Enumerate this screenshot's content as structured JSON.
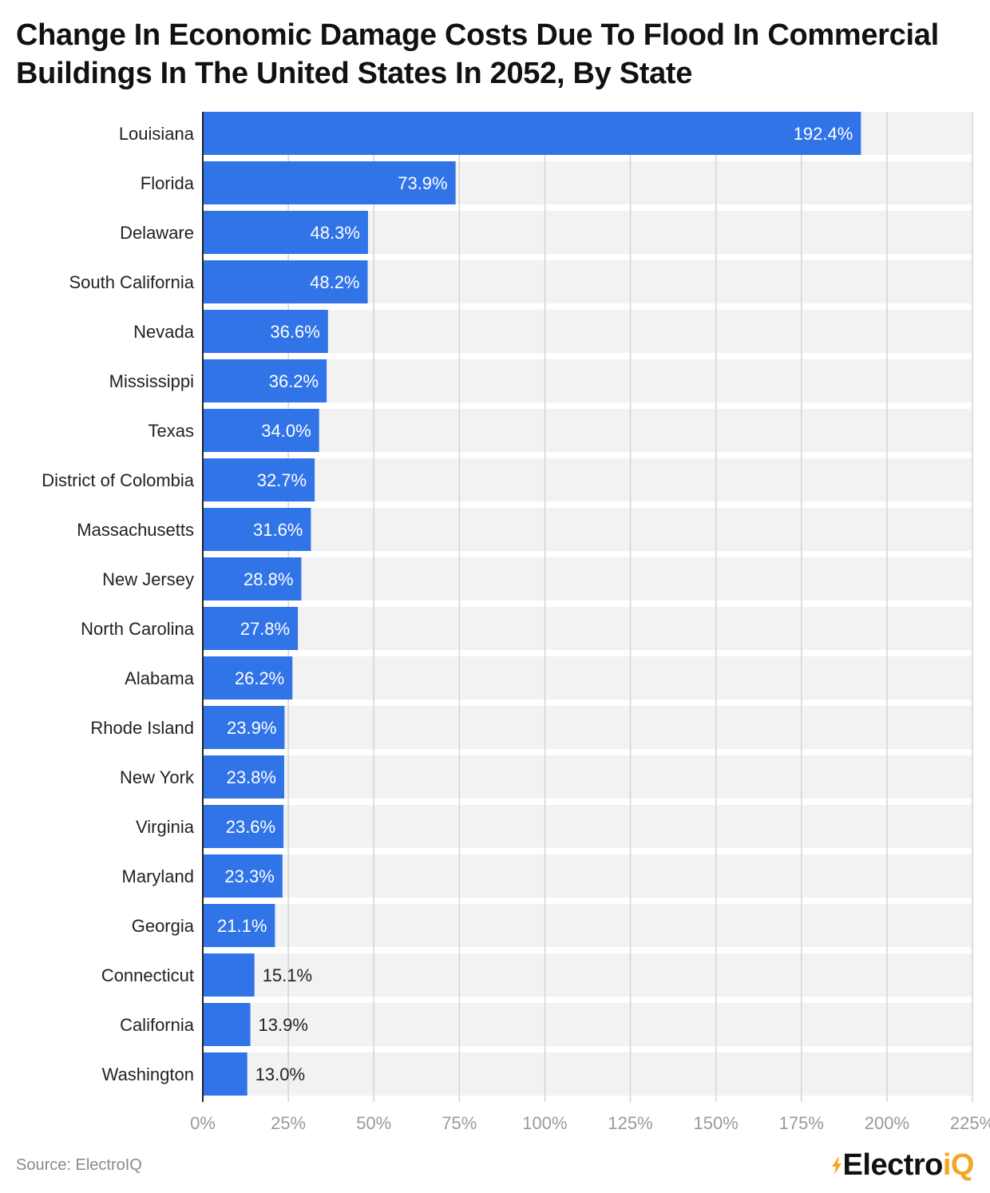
{
  "chart_data": {
    "type": "bar",
    "orientation": "horizontal",
    "title": "Change In Economic Damage Costs Due To Flood In Commercial Buildings In The United States In 2052, By State",
    "categories": [
      "Louisiana",
      "Florida",
      "Delaware",
      "South California",
      "Nevada",
      "Mississippi",
      "Texas",
      "District of Colombia",
      "Massachusetts",
      "New Jersey",
      "North Carolina",
      "Alabama",
      "Rhode Island",
      "New York",
      "Virginia",
      "Maryland",
      "Georgia",
      "Connecticut",
      "California",
      "Washington"
    ],
    "values": [
      192.4,
      73.9,
      48.3,
      48.2,
      36.6,
      36.2,
      34.0,
      32.7,
      31.6,
      28.8,
      27.8,
      26.2,
      23.9,
      23.8,
      23.6,
      23.3,
      21.1,
      15.1,
      13.9,
      13.0
    ],
    "value_labels": [
      "192.4%",
      "73.9%",
      "48.3%",
      "48.2%",
      "36.6%",
      "36.2%",
      "34.0%",
      "32.7%",
      "31.6%",
      "28.8%",
      "27.8%",
      "26.2%",
      "23.9%",
      "23.8%",
      "23.6%",
      "23.3%",
      "21.1%",
      "15.1%",
      "13.9%",
      "13.0%"
    ],
    "xlim": [
      0,
      225
    ],
    "x_ticks": [
      0,
      25,
      50,
      75,
      100,
      125,
      150,
      175,
      200,
      225
    ],
    "x_tick_labels": [
      "0%",
      "25%",
      "50%",
      "75%",
      "100%",
      "125%",
      "150%",
      "175%",
      "200%",
      "225%"
    ],
    "xlabel": "",
    "ylabel": "",
    "grid": true,
    "legend": "none",
    "bar_color": "#3174e8",
    "row_band_color": "#f2f2f2"
  },
  "footer": {
    "source": "Source: ElectroIQ",
    "logo_main": "Electro",
    "logo_accent": "iQ"
  },
  "colors": {
    "logo_accent": "#f5a623",
    "title": "#111111",
    "axis_text": "#9a9a9a"
  }
}
